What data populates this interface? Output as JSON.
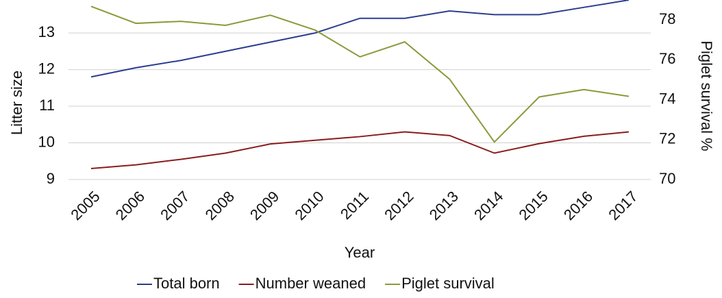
{
  "chart_data": {
    "type": "line",
    "x_label": "Year",
    "y_label": "Litter size",
    "y2_label": "Piglet survival %",
    "categories": [
      "2005",
      "2006",
      "2007",
      "2008",
      "2009",
      "2010",
      "2011",
      "2012",
      "2013",
      "2014",
      "2015",
      "2016",
      "2017"
    ],
    "ylim": [
      9,
      13.9
    ],
    "yticks": [
      9,
      10,
      11,
      12,
      13
    ],
    "y2lim": [
      70,
      79
    ],
    "y2ticks": [
      70,
      72,
      74,
      76,
      78
    ],
    "grid": true,
    "legend": "bottom",
    "series": [
      {
        "name": "Total born",
        "color": "#2b3d8f",
        "values": [
          11.8,
          12.05,
          12.25,
          12.5,
          12.75,
          13.0,
          13.4,
          13.4,
          13.6,
          13.5,
          13.5,
          13.7,
          13.9
        ]
      },
      {
        "name": "Number weaned",
        "color": "#8b1c1c",
        "values": [
          9.3,
          9.4,
          9.55,
          9.72,
          9.97,
          10.07,
          10.17,
          10.3,
          10.2,
          9.72,
          9.98,
          10.18,
          10.3
        ]
      },
      {
        "name": "Piglet survival",
        "color": "#8a9a3a",
        "axis": "y2",
        "values": [
          78.68,
          77.83,
          77.93,
          77.73,
          78.24,
          77.49,
          76.15,
          76.9,
          75.03,
          71.88,
          74.14,
          74.51,
          74.17
        ]
      }
    ]
  }
}
